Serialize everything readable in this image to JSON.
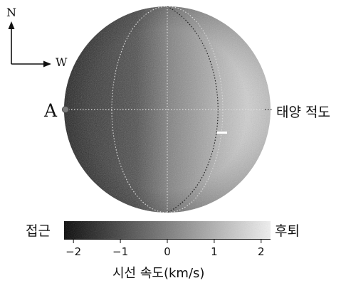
{
  "compass": {
    "north": "N",
    "west": "W"
  },
  "point_label": "A",
  "equator_label": "태양 적도",
  "colorbar": {
    "left_label": "접근",
    "right_label": "후퇴",
    "ticks": [
      "−2",
      "−1",
      "0",
      "1",
      "2"
    ],
    "tick_values": [
      -2,
      -1,
      0,
      1,
      2
    ],
    "axis_title": "시선 속도(km/s)",
    "range": [
      -2.2,
      2.2
    ],
    "colors": {
      "approach": "#050505",
      "recede": "#f2f2f2"
    }
  }
}
